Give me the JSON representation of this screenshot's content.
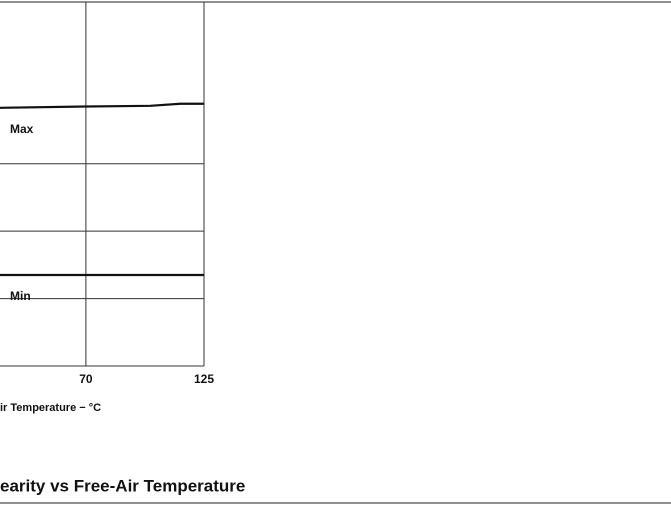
{
  "chart_data": {
    "type": "line",
    "title": "earity vs Free-Air Temperature",
    "x_label": "ir Temperature − °C",
    "xlim": [
      30,
      125
    ],
    "xticks": [
      70,
      125
    ],
    "ylim": [
      0,
      5.4
    ],
    "yticks": [
      1,
      2,
      3
    ],
    "grid": true,
    "series": [
      {
        "name": "Max",
        "color": "#111111",
        "x": [
          30,
          70,
          100,
          114,
          125
        ],
        "values": [
          3.83,
          3.85,
          3.86,
          3.89,
          3.89
        ]
      },
      {
        "name": "Min",
        "color": "#111111",
        "x": [
          30,
          125
        ],
        "values": [
          1.35,
          1.35
        ]
      }
    ]
  }
}
